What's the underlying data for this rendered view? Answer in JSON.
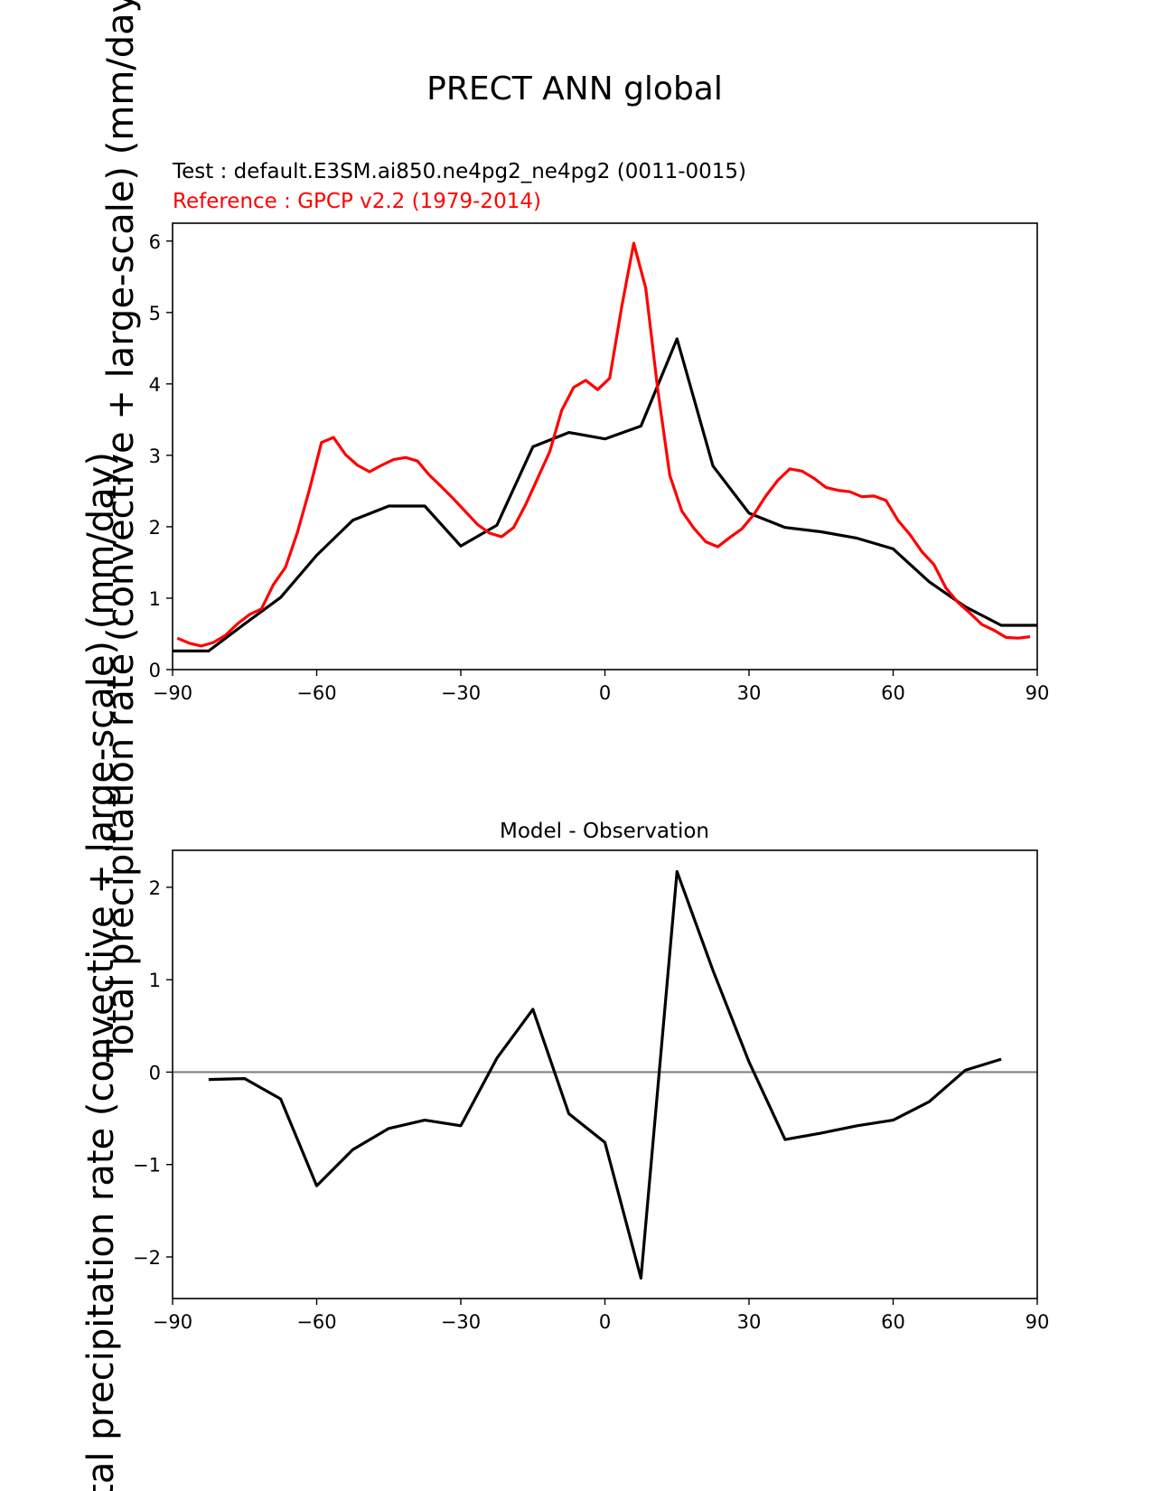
{
  "figure": {
    "title": "PRECT ANN global"
  },
  "colors": {
    "test": "#000000",
    "reference": "#ff0000",
    "zero_line": "#808080"
  },
  "chart_data": [
    {
      "type": "line",
      "id": "top",
      "title": "",
      "subtitle_test": "Test : default.E3SM.ai850.ne4pg2_ne4pg2 (0011-0015)",
      "subtitle_ref": "Reference : GPCP v2.2 (1979-2014)",
      "xlabel": "",
      "ylabel": "Total precipitation rate (convective + large-scale) (mm/day)",
      "xlim": [
        -90,
        90
      ],
      "ylim": [
        0,
        6.25
      ],
      "xticks": [
        -90,
        -60,
        -30,
        0,
        30,
        60,
        90
      ],
      "xtick_labels": [
        "−90",
        "−60",
        "−30",
        "0",
        "30",
        "60",
        "90"
      ],
      "yticks": [
        0,
        1,
        2,
        3,
        4,
        5,
        6
      ],
      "ytick_labels": [
        "0",
        "1",
        "2",
        "3",
        "4",
        "5",
        "6"
      ],
      "series": [
        {
          "name": "Test",
          "color": "#000000",
          "x": [
            -90,
            -82.5,
            -75,
            -67.5,
            -60,
            -52.5,
            -45,
            -37.5,
            -30,
            -22.5,
            -15,
            -7.5,
            0,
            7.5,
            15,
            22.5,
            30,
            37.5,
            45,
            52.5,
            60,
            67.5,
            75,
            82.5,
            90
          ],
          "y": [
            0.26,
            0.26,
            0.64,
            1.01,
            1.6,
            2.09,
            2.29,
            2.29,
            1.73,
            2.02,
            3.12,
            3.32,
            3.23,
            3.41,
            4.63,
            2.85,
            2.19,
            1.99,
            1.93,
            1.84,
            1.69,
            1.23,
            0.88,
            0.62,
            0.62
          ]
        },
        {
          "name": "Reference",
          "color": "#ff0000",
          "x": [
            -89,
            -86.5,
            -84,
            -81.5,
            -79,
            -76.5,
            -74,
            -71.5,
            -69,
            -66.5,
            -64,
            -61.5,
            -59,
            -56.5,
            -54,
            -51.5,
            -49,
            -46.5,
            -44,
            -41.5,
            -39,
            -36.5,
            -34,
            -31.5,
            -29,
            -26.5,
            -24,
            -21.5,
            -19,
            -16.5,
            -14,
            -11.5,
            -9,
            -6.5,
            -4,
            -1.5,
            1,
            3.5,
            6,
            8.5,
            11,
            13.5,
            16,
            18.5,
            21,
            23.5,
            26,
            28.5,
            31,
            33.5,
            36,
            38.5,
            41,
            43.5,
            46,
            48.5,
            51,
            53.5,
            56,
            58.5,
            61,
            63.5,
            66,
            68.5,
            71,
            73.5,
            76,
            78.5,
            81,
            83.5,
            86,
            88.5
          ],
          "y": [
            0.44,
            0.37,
            0.33,
            0.38,
            0.48,
            0.64,
            0.77,
            0.85,
            1.19,
            1.43,
            1.92,
            2.52,
            3.18,
            3.25,
            3.01,
            2.86,
            2.77,
            2.86,
            2.94,
            2.97,
            2.92,
            2.72,
            2.56,
            2.39,
            2.21,
            2.03,
            1.91,
            1.86,
            1.99,
            2.31,
            2.68,
            3.05,
            3.63,
            3.95,
            4.05,
            3.92,
            4.08,
            5.08,
            5.97,
            5.34,
            3.92,
            2.72,
            2.22,
            1.98,
            1.79,
            1.72,
            1.85,
            1.97,
            2.17,
            2.43,
            2.65,
            2.81,
            2.78,
            2.68,
            2.55,
            2.51,
            2.49,
            2.42,
            2.43,
            2.37,
            2.09,
            1.89,
            1.65,
            1.47,
            1.14,
            0.94,
            0.79,
            0.63,
            0.55,
            0.45,
            0.44,
            0.46
          ]
        }
      ]
    },
    {
      "type": "line",
      "id": "bottom",
      "title": "Model - Observation",
      "xlabel": "",
      "ylabel": "Total precipitation rate (convective + large-scale) (mm/day)",
      "xlim": [
        -90,
        90
      ],
      "ylim": [
        -2.45,
        2.4
      ],
      "xticks": [
        -90,
        -60,
        -30,
        0,
        30,
        60,
        90
      ],
      "xtick_labels": [
        "−90",
        "−60",
        "−30",
        "0",
        "30",
        "60",
        "90"
      ],
      "yticks": [
        -2,
        -1,
        0,
        1,
        2
      ],
      "ytick_labels": [
        "−2",
        "−1",
        "0",
        "1",
        "2"
      ],
      "zero_line": 0,
      "series": [
        {
          "name": "Model - Observation",
          "color": "#000000",
          "x": [
            -82.5,
            -75,
            -67.5,
            -60,
            -52.5,
            -45,
            -37.5,
            -30,
            -22.5,
            -15,
            -7.5,
            0,
            7.5,
            15,
            22.5,
            30,
            37.5,
            45,
            52.5,
            60,
            67.5,
            75,
            82.5
          ],
          "y": [
            -0.08,
            -0.07,
            -0.29,
            -1.23,
            -0.84,
            -0.61,
            -0.52,
            -0.58,
            0.15,
            0.68,
            -0.45,
            -0.76,
            -2.23,
            2.17,
            1.1,
            0.11,
            -0.73,
            -0.66,
            -0.58,
            -0.52,
            -0.32,
            0.02,
            0.14
          ]
        }
      ]
    }
  ]
}
